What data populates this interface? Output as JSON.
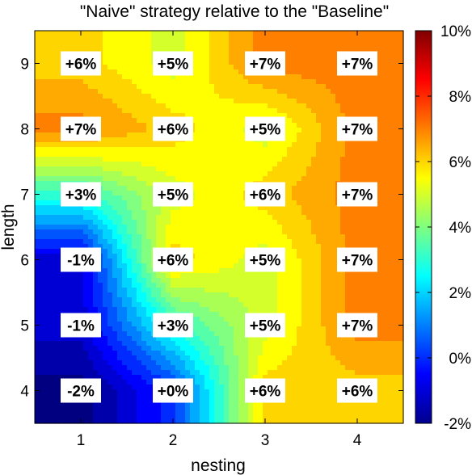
{
  "chart_data": {
    "type": "heatmap",
    "title": "\"Naive\" strategy relative to the \"Baseline\"",
    "xlabel": "nesting",
    "ylabel": "length",
    "x": [
      1,
      2,
      3,
      4
    ],
    "y": [
      4,
      5,
      6,
      7,
      8,
      9
    ],
    "x_tick_labels": [
      "1",
      "2",
      "3",
      "4"
    ],
    "y_tick_labels": [
      "4",
      "5",
      "6",
      "7",
      "8",
      "9"
    ],
    "values": [
      [
        -2,
        0,
        6,
        6
      ],
      [
        -1,
        3,
        5,
        7
      ],
      [
        -1,
        6,
        5,
        7
      ],
      [
        3,
        5,
        6,
        7
      ],
      [
        7,
        6,
        5,
        7
      ],
      [
        6,
        5,
        7,
        7
      ]
    ],
    "cell_labels": [
      [
        "-2%",
        "+0%",
        "+6%",
        "+6%"
      ],
      [
        "-1%",
        "+3%",
        "+5%",
        "+7%"
      ],
      [
        "-1%",
        "+6%",
        "+5%",
        "+7%"
      ],
      [
        "+3%",
        "+5%",
        "+6%",
        "+7%"
      ],
      [
        "+7%",
        "+6%",
        "+5%",
        "+7%"
      ],
      [
        "+6%",
        "+5%",
        "+7%",
        "+7%"
      ]
    ],
    "colorbar": {
      "range": [
        -2,
        10
      ],
      "tick_labels": [
        "-2%",
        "0%",
        "2%",
        "4%",
        "6%",
        "8%",
        "10%"
      ],
      "colormap": "jet"
    },
    "grid": false
  }
}
